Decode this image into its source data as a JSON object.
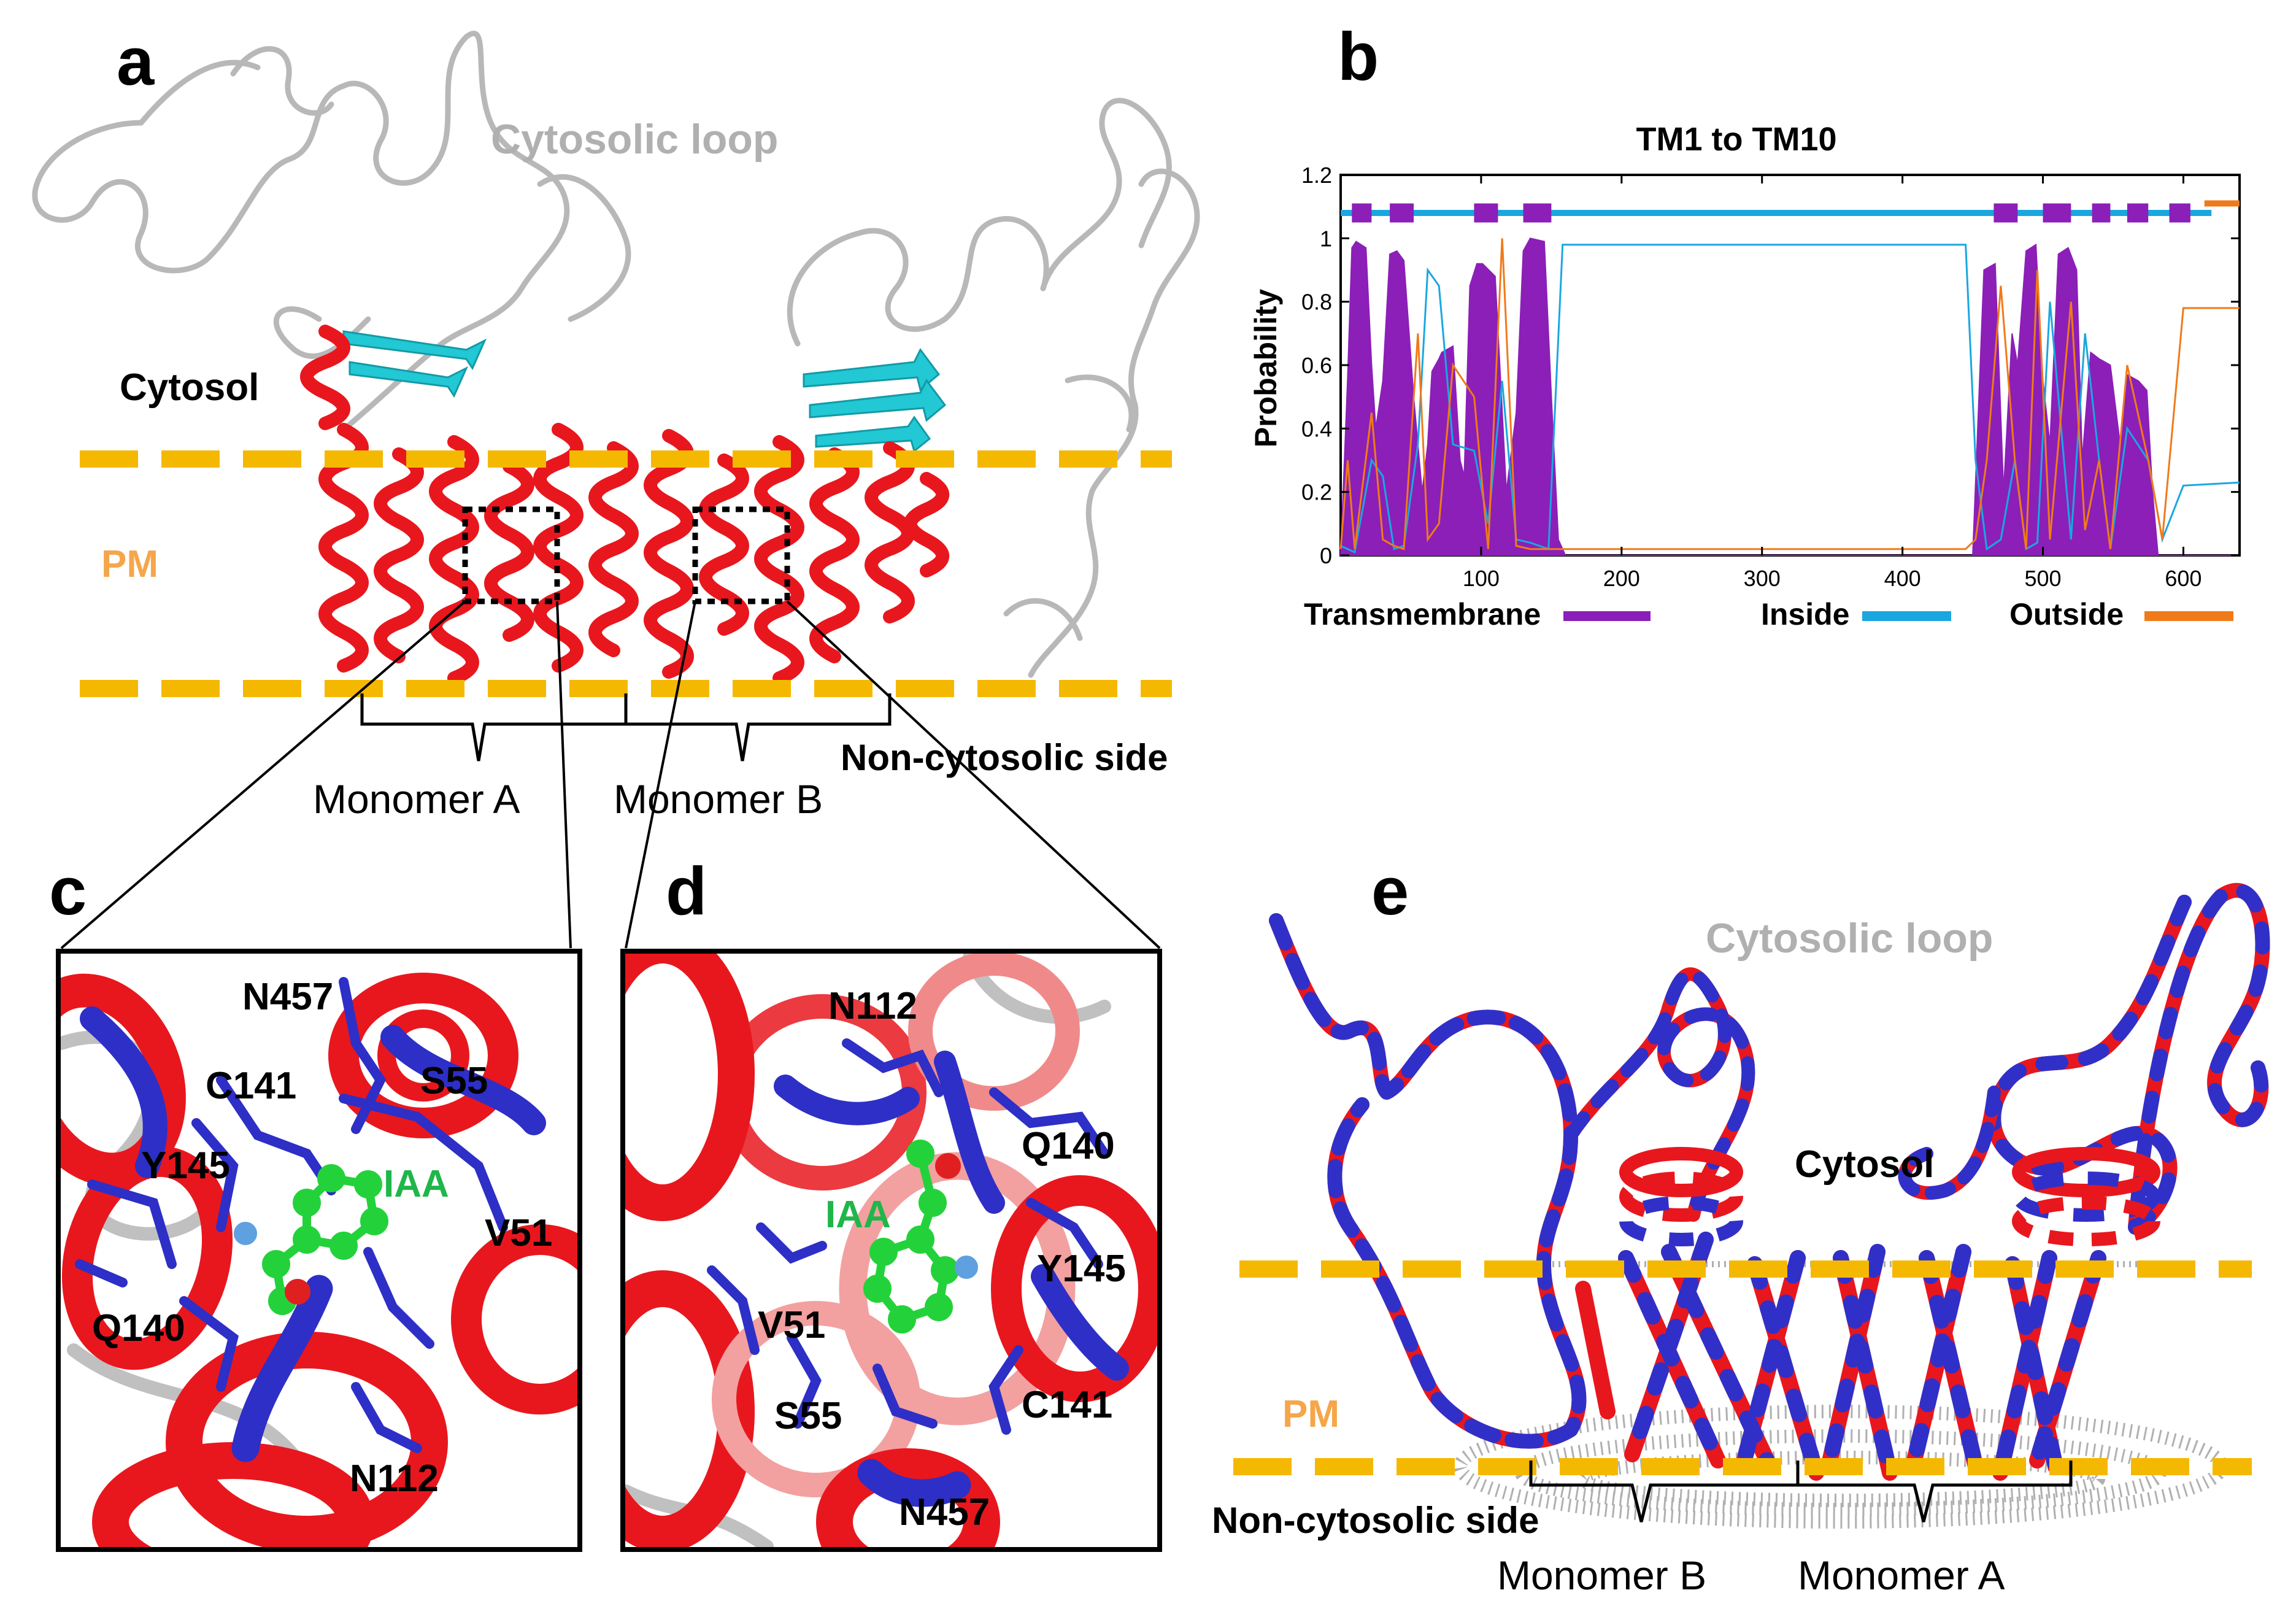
{
  "panels": {
    "a": {
      "letter": "a",
      "cytosolic_loop": "Cytosolic loop",
      "cytosol": "Cytosol",
      "pm": "PM",
      "monomer_a": "Monomer  A",
      "monomer_b": "Monomer  B",
      "non_cytosolic": "Non-cytosolic side"
    },
    "b": {
      "letter": "b",
      "legend": {
        "transmembrane": "Transmembrane",
        "inside": "Inside",
        "outside": "Outside"
      }
    },
    "c": {
      "letter": "c",
      "residues": [
        "N457",
        "C141",
        "S55",
        "Y145",
        "V51",
        "Q140",
        "N112"
      ],
      "ligand": "IAA"
    },
    "d": {
      "letter": "d",
      "residues": [
        "N112",
        "Q140",
        "V51",
        "Y145",
        "S55",
        "C141",
        "N457"
      ],
      "ligand": "IAA"
    },
    "e": {
      "letter": "e",
      "cytosolic_loop": "Cytosolic loop",
      "cytosol": "Cytosol",
      "pm": "PM",
      "non_cytosolic": "Non-cytosolic side",
      "monomer_b": "Monomer  B",
      "monomer_a": "Monomer  A"
    }
  },
  "colors": {
    "helix": "#e8171e",
    "sheet": "#22c8d4",
    "coil": "#b8b8b8",
    "membrane": "#f5b800",
    "residue": "#2e2fc6",
    "ligand": "#23d23a",
    "transmembrane": "#8b1fb8",
    "inside": "#1aa7e0",
    "outside": "#f07a1a",
    "pm_label": "#f5a64a",
    "loop_label": "#b0b0b0",
    "ligand_label": "#1fb64a"
  },
  "chart_data": {
    "type": "area",
    "title": "TM1 to TM10",
    "xlabel": "",
    "ylabel": "Probability",
    "xlim": [
      0,
      640
    ],
    "ylim": [
      0,
      1.2
    ],
    "xticks": [
      100,
      200,
      300,
      400,
      500,
      600
    ],
    "yticks": [
      0,
      0.2,
      0.4,
      0.6,
      0.8,
      1,
      1.2
    ],
    "grid": false,
    "legend_position": "bottom",
    "series": [
      {
        "name": "Transmembrane",
        "style": "filled",
        "x": [
          0,
          5,
          8,
          11,
          18,
          22,
          25,
          30,
          35,
          40,
          45,
          52,
          58,
          62,
          65,
          70,
          72,
          80,
          85,
          88,
          92,
          97,
          101,
          110,
          118,
          125,
          130,
          135,
          145,
          150,
          155,
          160,
          450,
          458,
          466,
          472,
          478,
          482,
          488,
          495,
          500,
          505,
          511,
          518,
          524,
          528,
          534,
          540,
          548,
          555,
          560,
          564,
          568,
          574,
          578,
          582,
          600,
          640
        ],
        "y": [
          0,
          0.56,
          0.97,
          0.99,
          0.97,
          0.6,
          0.4,
          0.55,
          0.95,
          0.96,
          0.93,
          0.5,
          0.2,
          0.35,
          0.58,
          0.62,
          0.64,
          0.66,
          0.3,
          0.25,
          0.85,
          0.92,
          0.92,
          0.88,
          0.2,
          0.45,
          0.96,
          1.0,
          0.99,
          0.5,
          0.05,
          0,
          0,
          0.9,
          0.92,
          0.2,
          0.7,
          0.6,
          0.96,
          0.98,
          0.55,
          0.35,
          0.95,
          0.97,
          0.9,
          0.3,
          0.64,
          0.62,
          0.6,
          0.35,
          0.57,
          0.56,
          0.55,
          0.52,
          0.2,
          0,
          0,
          0
        ]
      },
      {
        "name": "Inside",
        "style": "line",
        "x": [
          0,
          5,
          10,
          22,
          30,
          38,
          45,
          55,
          62,
          70,
          80,
          95,
          105,
          115,
          125,
          135,
          148,
          158,
          445,
          452,
          460,
          470,
          480,
          488,
          496,
          505,
          520,
          530,
          540,
          548,
          560,
          575,
          585,
          600,
          640
        ],
        "y": [
          0.03,
          0.02,
          0.01,
          0.3,
          0.25,
          0.02,
          0.03,
          0.35,
          0.9,
          0.85,
          0.35,
          0.33,
          0.1,
          0.55,
          0.05,
          0.04,
          0.02,
          0.98,
          0.98,
          0.3,
          0.02,
          0.05,
          0.3,
          0.02,
          0.04,
          0.8,
          0.05,
          0.7,
          0.3,
          0.02,
          0.4,
          0.3,
          0.05,
          0.22,
          0.23
        ]
      },
      {
        "name": "Outside",
        "style": "line",
        "x": [
          0,
          5,
          10,
          22,
          30,
          38,
          45,
          55,
          62,
          70,
          80,
          95,
          105,
          115,
          125,
          135,
          148,
          158,
          445,
          452,
          460,
          470,
          480,
          488,
          496,
          505,
          520,
          530,
          540,
          548,
          560,
          575,
          585,
          600,
          640
        ],
        "y": [
          0.02,
          0.3,
          0.02,
          0.45,
          0.05,
          0.03,
          0.02,
          0.7,
          0.05,
          0.1,
          0.6,
          0.5,
          0.02,
          1.0,
          0.03,
          0.02,
          0.02,
          0.02,
          0.02,
          0.05,
          0.3,
          0.85,
          0.3,
          0.02,
          0.9,
          0.05,
          0.8,
          0.08,
          0.3,
          0.02,
          0.6,
          0.3,
          0.05,
          0.78,
          0.78
        ]
      }
    ],
    "topology_track": {
      "transmembrane_segments": [
        [
          8,
          22
        ],
        [
          35,
          52
        ],
        [
          95,
          112
        ],
        [
          130,
          150
        ],
        [
          465,
          482
        ],
        [
          500,
          520
        ],
        [
          535,
          548
        ],
        [
          560,
          575
        ],
        [
          590,
          605
        ]
      ]
    }
  }
}
